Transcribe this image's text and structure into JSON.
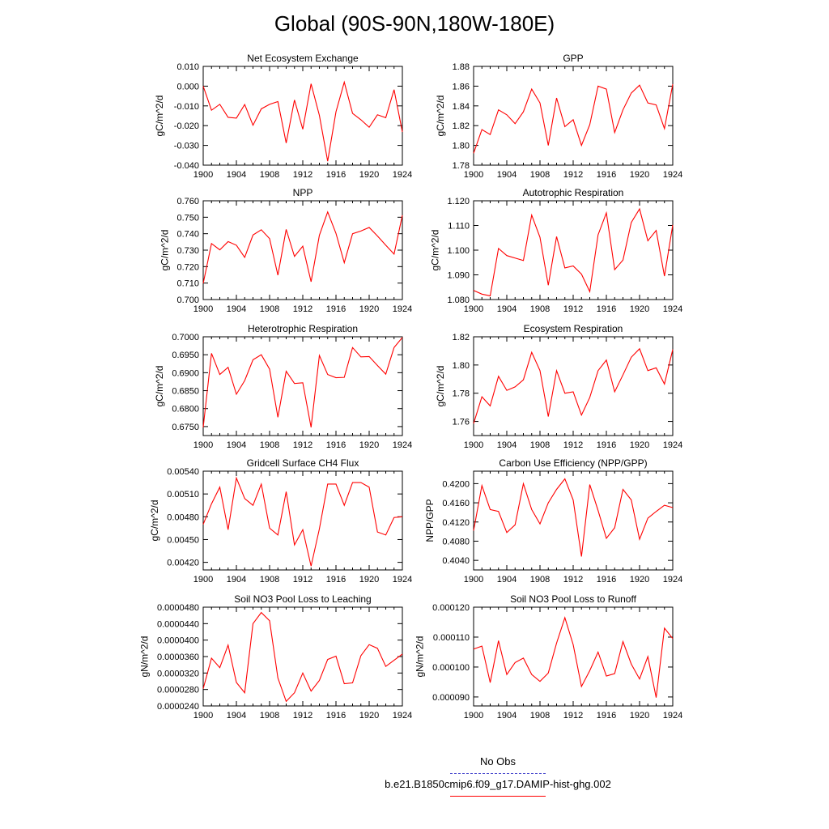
{
  "title": "Global (90S-90N,180W-180E)",
  "colors": {
    "model": "#ff0000",
    "obs": "#4444cc"
  },
  "legend": {
    "obs_label": "No Obs",
    "model_label": "b.e21.B1850cmip6.f09_g17.DAMIP-hist-ghg.002"
  },
  "chart_data": [
    {
      "type": "line",
      "title": "Net Ecosystem Exchange",
      "ylabel": "gC/m^2/d",
      "xlim": [
        1900,
        1924
      ],
      "ylim": [
        -0.04,
        0.01
      ],
      "xticks": [
        "1900",
        "1904",
        "1908",
        "1912",
        "1916",
        "1920",
        "1924"
      ],
      "yticks": [
        "-0.040",
        "-0.030",
        "-0.020",
        "-0.010",
        "0.000",
        "0.010"
      ],
      "x": [
        1900,
        1901,
        1902,
        1903,
        1904,
        1905,
        1906,
        1907,
        1908,
        1909,
        1910,
        1911,
        1912,
        1913,
        1914,
        1915,
        1916,
        1917,
        1918,
        1919,
        1920,
        1921,
        1922,
        1923,
        1924
      ],
      "values": [
        0.0,
        -0.0122,
        -0.0092,
        -0.0158,
        -0.0162,
        -0.0093,
        -0.0198,
        -0.0115,
        -0.0092,
        -0.0078,
        -0.0288,
        -0.007,
        -0.0218,
        0.0012,
        -0.0148,
        -0.038,
        -0.013,
        0.002,
        -0.0138,
        -0.017,
        -0.0208,
        -0.0145,
        -0.016,
        -0.0018,
        -0.0232
      ]
    },
    {
      "type": "line",
      "title": "GPP",
      "ylabel": "gC/m^2/d",
      "xlim": [
        1900,
        1924
      ],
      "ylim": [
        1.78,
        1.88
      ],
      "xticks": [
        "1900",
        "1904",
        "1908",
        "1912",
        "1916",
        "1920",
        "1924"
      ],
      "yticks": [
        "1.78",
        "1.80",
        "1.82",
        "1.84",
        "1.86",
        "1.88"
      ],
      "x": [
        1900,
        1901,
        1902,
        1903,
        1904,
        1905,
        1906,
        1907,
        1908,
        1909,
        1910,
        1911,
        1912,
        1913,
        1914,
        1915,
        1916,
        1917,
        1918,
        1919,
        1920,
        1921,
        1922,
        1923,
        1924
      ],
      "values": [
        1.792,
        1.816,
        1.811,
        1.836,
        1.831,
        1.822,
        1.834,
        1.857,
        1.843,
        1.8,
        1.848,
        1.819,
        1.826,
        1.8,
        1.821,
        1.86,
        1.857,
        1.813,
        1.836,
        1.853,
        1.861,
        1.843,
        1.841,
        1.817,
        1.862
      ]
    },
    {
      "type": "line",
      "title": "NPP",
      "ylabel": "gC/m^2/d",
      "xlim": [
        1900,
        1924
      ],
      "ylim": [
        0.7,
        0.76
      ],
      "xticks": [
        "1900",
        "1904",
        "1908",
        "1912",
        "1916",
        "1920",
        "1924"
      ],
      "yticks": [
        "0.700",
        "0.710",
        "0.720",
        "0.730",
        "0.740",
        "0.750",
        "0.760"
      ],
      "x": [
        1900,
        1901,
        1902,
        1903,
        1904,
        1905,
        1906,
        1907,
        1908,
        1909,
        1910,
        1911,
        1912,
        1913,
        1914,
        1915,
        1916,
        1917,
        1918,
        1919,
        1920,
        1921,
        1922,
        1923,
        1924
      ],
      "values": [
        0.7098,
        0.734,
        0.7302,
        0.7352,
        0.733,
        0.7256,
        0.7392,
        0.7424,
        0.737,
        0.7148,
        0.7426,
        0.7262,
        0.7324,
        0.7108,
        0.739,
        0.7532,
        0.7402,
        0.7224,
        0.74,
        0.7416,
        0.7438,
        0.7386,
        0.733,
        0.7276,
        0.7512
      ]
    },
    {
      "type": "line",
      "title": "Autotrophic Respiration",
      "ylabel": "gC/m^2/d",
      "xlim": [
        1900,
        1924
      ],
      "ylim": [
        1.08,
        1.12
      ],
      "xticks": [
        "1900",
        "1904",
        "1908",
        "1912",
        "1916",
        "1920",
        "1924"
      ],
      "yticks": [
        "1.080",
        "1.090",
        "1.100",
        "1.110",
        "1.120"
      ],
      "x": [
        1900,
        1901,
        1902,
        1903,
        1904,
        1905,
        1906,
        1907,
        1908,
        1909,
        1910,
        1911,
        1912,
        1913,
        1914,
        1915,
        1916,
        1917,
        1918,
        1919,
        1920,
        1921,
        1922,
        1923,
        1924
      ],
      "values": [
        1.0837,
        1.0822,
        1.0815,
        1.1007,
        1.0978,
        1.0968,
        1.0958,
        1.1142,
        1.1052,
        1.0858,
        1.1055,
        1.0928,
        1.0936,
        1.0903,
        1.0832,
        1.1062,
        1.1151,
        1.0921,
        1.096,
        1.1112,
        1.1167,
        1.1038,
        1.108,
        1.0895,
        1.1102
      ]
    },
    {
      "type": "line",
      "title": "Heterotrophic Respiration",
      "ylabel": "gC/m^2/d",
      "xlim": [
        1900,
        1924
      ],
      "ylim": [
        0.6725,
        0.7
      ],
      "xticks": [
        "1900",
        "1904",
        "1908",
        "1912",
        "1916",
        "1920",
        "1924"
      ],
      "yticks": [
        "0.6750",
        "0.6800",
        "0.6850",
        "0.6900",
        "0.6950",
        "0.7000"
      ],
      "x": [
        1900,
        1901,
        1902,
        1903,
        1904,
        1905,
        1906,
        1907,
        1908,
        1909,
        1910,
        1911,
        1912,
        1913,
        1914,
        1915,
        1916,
        1917,
        1918,
        1919,
        1920,
        1921,
        1922,
        1923,
        1924
      ],
      "values": [
        0.6748,
        0.6954,
        0.6895,
        0.6915,
        0.684,
        0.6878,
        0.6936,
        0.695,
        0.691,
        0.6776,
        0.6904,
        0.687,
        0.6872,
        0.6748,
        0.6948,
        0.6895,
        0.6886,
        0.6887,
        0.697,
        0.6944,
        0.6945,
        0.692,
        0.6896,
        0.697,
        0.6998
      ]
    },
    {
      "type": "line",
      "title": "Ecosystem Respiration",
      "ylabel": "gC/m^2/d",
      "xlim": [
        1900,
        1924
      ],
      "ylim": [
        1.75,
        1.82
      ],
      "xticks": [
        "1900",
        "1904",
        "1908",
        "1912",
        "1916",
        "1920",
        "1924"
      ],
      "yticks": [
        "1.76",
        "1.78",
        "1.80",
        "1.82"
      ],
      "x": [
        1900,
        1901,
        1902,
        1903,
        1904,
        1905,
        1906,
        1907,
        1908,
        1909,
        1910,
        1911,
        1912,
        1913,
        1914,
        1915,
        1916,
        1917,
        1918,
        1919,
        1920,
        1921,
        1922,
        1923,
        1924
      ],
      "values": [
        1.7585,
        1.7775,
        1.771,
        1.792,
        1.782,
        1.7845,
        1.7895,
        1.809,
        1.796,
        1.7635,
        1.796,
        1.78,
        1.781,
        1.7645,
        1.777,
        1.796,
        1.8035,
        1.781,
        1.793,
        1.8055,
        1.8115,
        1.796,
        1.798,
        1.7865,
        1.811
      ]
    },
    {
      "type": "line",
      "title": "Gridcell Surface CH4 Flux",
      "ylabel": "gC/m^2/d",
      "xlim": [
        1900,
        1924
      ],
      "ylim": [
        0.0041,
        0.0054
      ],
      "xticks": [
        "1900",
        "1904",
        "1908",
        "1912",
        "1916",
        "1920",
        "1924"
      ],
      "yticks": [
        "0.00420",
        "0.00450",
        "0.00480",
        "0.00510",
        "0.00540"
      ],
      "x": [
        1900,
        1901,
        1902,
        1903,
        1904,
        1905,
        1906,
        1907,
        1908,
        1909,
        1910,
        1911,
        1912,
        1913,
        1914,
        1915,
        1916,
        1917,
        1918,
        1919,
        1920,
        1921,
        1922,
        1923,
        1924
      ],
      "values": [
        0.0047,
        0.00497,
        0.00519,
        0.00463,
        0.00531,
        0.00504,
        0.00495,
        0.00523,
        0.00465,
        0.00456,
        0.00513,
        0.00443,
        0.00463,
        0.00415,
        0.00464,
        0.00523,
        0.00523,
        0.00495,
        0.00525,
        0.00525,
        0.00519,
        0.0046,
        0.00456,
        0.00479,
        0.0048
      ]
    },
    {
      "type": "line",
      "title": "Carbon Use Efficiency (NPP/GPP)",
      "ylabel": "NPP/GPP",
      "xlim": [
        1900,
        1924
      ],
      "ylim": [
        0.402,
        0.4226
      ],
      "xticks": [
        "1900",
        "1904",
        "1908",
        "1912",
        "1916",
        "1920",
        "1924"
      ],
      "yticks": [
        "0.4040",
        "0.4080",
        "0.4120",
        "0.4160",
        "0.4200"
      ],
      "x": [
        1900,
        1901,
        1902,
        1903,
        1904,
        1905,
        1906,
        1907,
        1908,
        1909,
        1910,
        1911,
        1912,
        1913,
        1914,
        1915,
        1916,
        1917,
        1918,
        1919,
        1920,
        1921,
        1922,
        1923,
        1924
      ],
      "values": [
        0.4102,
        0.4196,
        0.4146,
        0.4142,
        0.4098,
        0.4114,
        0.42,
        0.4146,
        0.4116,
        0.416,
        0.4188,
        0.421,
        0.4166,
        0.4048,
        0.4198,
        0.4144,
        0.4086,
        0.4108,
        0.4188,
        0.4166,
        0.4084,
        0.4128,
        0.4142,
        0.4155,
        0.415
      ]
    },
    {
      "type": "line",
      "title": "Soil NO3 Pool Loss to Leaching",
      "ylabel": "gN/m^2/d",
      "xlim": [
        1900,
        1924
      ],
      "ylim": [
        2.4e-05,
        4.8e-05
      ],
      "xticks": [
        "1900",
        "1904",
        "1908",
        "1912",
        "1916",
        "1920",
        "1924"
      ],
      "yticks": [
        "0.0000240",
        "0.0000280",
        "0.0000320",
        "0.0000360",
        "0.0000400",
        "0.0000440",
        "0.0000480"
      ],
      "x": [
        1900,
        1901,
        1902,
        1903,
        1904,
        1905,
        1906,
        1907,
        1908,
        1909,
        1910,
        1911,
        1912,
        1913,
        1914,
        1915,
        1916,
        1917,
        1918,
        1919,
        1920,
        1921,
        1922,
        1923,
        1924
      ],
      "values": [
        2.82e-05,
        3.56e-05,
        3.33e-05,
        3.88e-05,
        2.97e-05,
        2.72e-05,
        4.4e-05,
        4.67e-05,
        4.47e-05,
        3.08e-05,
        2.51e-05,
        2.72e-05,
        3.2e-05,
        2.76e-05,
        3.02e-05,
        3.53e-05,
        3.61e-05,
        2.94e-05,
        2.96e-05,
        3.62e-05,
        3.89e-05,
        3.8e-05,
        3.36e-05,
        3.51e-05,
        3.66e-05
      ]
    },
    {
      "type": "line",
      "title": "Soil NO3 Pool Loss to Runoff",
      "ylabel": "gN/m^2/d",
      "xlim": [
        1900,
        1924
      ],
      "ylim": [
        8.7e-05,
        0.00012
      ],
      "xticks": [
        "1900",
        "1904",
        "1908",
        "1912",
        "1916",
        "1920",
        "1924"
      ],
      "yticks": [
        "0.000090",
        "0.000100",
        "0.000110",
        "0.000120"
      ],
      "x": [
        1900,
        1901,
        1902,
        1903,
        1904,
        1905,
        1906,
        1907,
        1908,
        1909,
        1910,
        1911,
        1912,
        1913,
        1914,
        1915,
        1916,
        1917,
        1918,
        1919,
        1920,
        1921,
        1922,
        1923,
        1924
      ],
      "values": [
        0.000106,
        0.000107,
        9.48e-05,
        0.0001088,
        9.75e-05,
        0.0001015,
        0.000103,
        9.75e-05,
        9.52e-05,
        9.8e-05,
        0.000108,
        0.0001165,
        0.0001075,
        9.35e-05,
        9.88e-05,
        0.000105,
        9.7e-05,
        9.78e-05,
        0.0001085,
        0.000101,
        9.6e-05,
        0.0001035,
        8.98e-05,
        0.000113,
        0.0001095
      ]
    }
  ]
}
